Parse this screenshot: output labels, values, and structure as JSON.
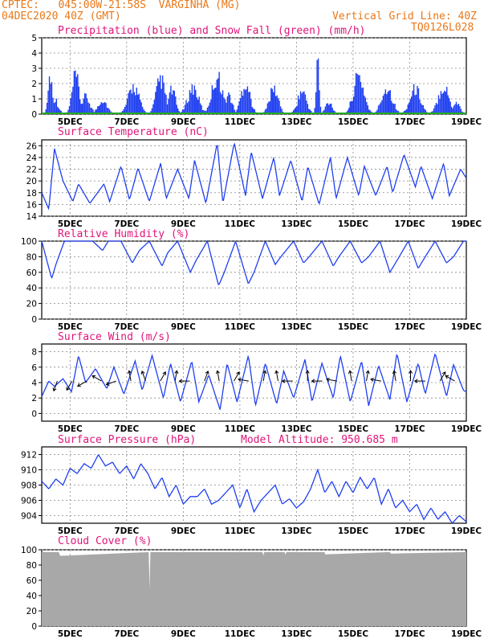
{
  "header": {
    "line1": "CPTEC:   045:00W-21:58S  VARGINHA (MG)",
    "line2": "04DEC2020 40Z (GMT)",
    "vgrid": "Vertical Grid Line: 40Z",
    "code": "TQ0126L028"
  },
  "colors": {
    "header": "#e8781a",
    "title": "#e0157a",
    "line": "#1f3ff0",
    "snow": "#22aa22",
    "cloud": "#a8a8a8"
  },
  "chart_data": [
    {
      "type": "bar",
      "title": "Precipitation (blue) and Snow Fall (green) (mm/h)",
      "ylim": [
        0,
        5
      ],
      "yticks": [
        0,
        1,
        2,
        3,
        4,
        5
      ],
      "x_ticks": [
        "5DEC",
        "7DEC",
        "9DEC",
        "11DEC",
        "13DEC",
        "15DEC",
        "17DEC",
        "19DEC"
      ],
      "series": [
        {
          "name": "Precipitation",
          "color": "#1f3ff0",
          "events": [
            {
              "t": 0.3,
              "peak": 3.2,
              "width": 0.12
            },
            {
              "t": 0.45,
              "peak": 1.3,
              "width": 0.2
            },
            {
              "t": 1.2,
              "peak": 3.1,
              "width": 0.2
            },
            {
              "t": 1.55,
              "peak": 1.4,
              "width": 0.25
            },
            {
              "t": 2.15,
              "peak": 1.2,
              "width": 0.25
            },
            {
              "t": 3.25,
              "peak": 2.3,
              "width": 0.3
            },
            {
              "t": 4.2,
              "peak": 2.9,
              "width": 0.25
            },
            {
              "t": 4.6,
              "peak": 2.0,
              "width": 0.2
            },
            {
              "t": 5.35,
              "peak": 2.2,
              "width": 0.3
            },
            {
              "t": 6.2,
              "peak": 3.1,
              "width": 0.3
            },
            {
              "t": 6.6,
              "peak": 1.6,
              "width": 0.2
            },
            {
              "t": 7.2,
              "peak": 2.6,
              "width": 0.25
            },
            {
              "t": 8.2,
              "peak": 2.1,
              "width": 0.25
            },
            {
              "t": 9.2,
              "peak": 1.9,
              "width": 0.25
            },
            {
              "t": 9.75,
              "peak": 4.7,
              "width": 0.08
            },
            {
              "t": 10.15,
              "peak": 1.0,
              "width": 0.2
            },
            {
              "t": 11.2,
              "peak": 3.1,
              "width": 0.3
            },
            {
              "t": 12.2,
              "peak": 2.2,
              "width": 0.3
            },
            {
              "t": 13.2,
              "peak": 2.1,
              "width": 0.3
            },
            {
              "t": 14.2,
              "peak": 2.3,
              "width": 0.3
            },
            {
              "t": 14.65,
              "peak": 1.0,
              "width": 0.2
            }
          ]
        },
        {
          "name": "Snow Fall",
          "color": "#22aa22",
          "values": [
            0
          ]
        }
      ]
    },
    {
      "type": "line",
      "title": "Surface Temperature (nC)",
      "ylim": [
        14,
        27
      ],
      "yticks": [
        14,
        16,
        18,
        20,
        22,
        24,
        26
      ],
      "x_ticks": [
        "5DEC",
        "7DEC",
        "9DEC",
        "11DEC",
        "13DEC",
        "15DEC",
        "17DEC",
        "19DEC"
      ],
      "t": [
        0,
        0.25,
        0.45,
        0.75,
        1.1,
        1.3,
        1.7,
        2.2,
        2.4,
        2.8,
        3.1,
        3.4,
        3.8,
        4.2,
        4.4,
        4.8,
        5.2,
        5.4,
        5.8,
        6.2,
        6.4,
        6.8,
        7.2,
        7.4,
        7.8,
        8.2,
        8.4,
        8.8,
        9.2,
        9.4,
        9.8,
        10.2,
        10.4,
        10.8,
        11.2,
        11.4,
        11.8,
        12.2,
        12.4,
        12.8,
        13.2,
        13.4,
        13.8,
        14.2,
        14.4,
        14.8,
        15.0
      ],
      "values": [
        18,
        15.2,
        25.5,
        20,
        16.5,
        19.5,
        16.2,
        19.5,
        16.5,
        22.5,
        16.8,
        22.2,
        16.5,
        23,
        17,
        22,
        17,
        23.5,
        16.2,
        26.5,
        16.2,
        26.5,
        17.5,
        25,
        17,
        24,
        17.5,
        23.5,
        16.5,
        22.5,
        16,
        24,
        17,
        24,
        17.5,
        22.5,
        17.5,
        22.5,
        18,
        24.5,
        19,
        22.5,
        17,
        23,
        17.5,
        22,
        20.5
      ]
    },
    {
      "type": "line",
      "title": "Relative Humidity (%)",
      "ylim": [
        0,
        100
      ],
      "yticks": [
        0,
        20,
        40,
        60,
        80,
        100
      ],
      "x_ticks": [
        "5DEC",
        "7DEC",
        "9DEC",
        "11DEC",
        "13DEC",
        "15DEC",
        "17DEC",
        "19DEC"
      ],
      "t": [
        0,
        0.35,
        0.5,
        0.8,
        1.0,
        1.3,
        1.8,
        2.15,
        2.35,
        2.8,
        3.2,
        3.45,
        3.8,
        4.25,
        4.45,
        4.8,
        5.25,
        5.45,
        5.85,
        6.25,
        6.45,
        6.85,
        7.3,
        7.5,
        7.9,
        8.25,
        8.45,
        8.9,
        9.25,
        9.45,
        9.9,
        10.3,
        10.5,
        10.9,
        11.3,
        11.55,
        11.95,
        12.3,
        12.55,
        12.95,
        13.3,
        13.55,
        13.9,
        14.3,
        14.55,
        14.9,
        15.0
      ],
      "values": [
        100,
        52,
        70,
        100,
        100,
        100,
        100,
        88,
        100,
        100,
        72,
        88,
        100,
        68,
        85,
        100,
        60,
        75,
        100,
        43,
        60,
        100,
        45,
        60,
        100,
        70,
        80,
        100,
        72,
        80,
        100,
        68,
        80,
        100,
        72,
        80,
        100,
        60,
        75,
        100,
        65,
        80,
        100,
        72,
        80,
        100,
        100
      ]
    },
    {
      "type": "line",
      "title": "Surface Wind (m/s)",
      "ylim": [
        -1,
        9
      ],
      "yticks": [
        0,
        2,
        4,
        6,
        8
      ],
      "x_ticks": [
        "5DEC",
        "7DEC",
        "9DEC",
        "11DEC",
        "13DEC",
        "15DEC",
        "17DEC",
        "19DEC"
      ],
      "t": [
        0,
        0.25,
        0.45,
        0.75,
        1.05,
        1.3,
        1.55,
        1.9,
        2.3,
        2.55,
        2.9,
        3.3,
        3.55,
        3.9,
        4.3,
        4.55,
        4.9,
        5.3,
        5.55,
        5.9,
        6.3,
        6.55,
        6.9,
        7.3,
        7.55,
        7.9,
        8.3,
        8.55,
        8.9,
        9.3,
        9.55,
        9.9,
        10.3,
        10.55,
        10.9,
        11.3,
        11.55,
        11.9,
        12.3,
        12.55,
        12.9,
        13.3,
        13.55,
        13.9,
        14.3,
        14.55,
        14.9,
        15.0
      ],
      "values": [
        2.2,
        4.2,
        3.5,
        4.5,
        2.8,
        7.5,
        4,
        5.8,
        3.2,
        6,
        2.5,
        6.8,
        3,
        7.5,
        2,
        6.5,
        1.5,
        6.8,
        1.5,
        5,
        0.5,
        6.5,
        1.5,
        7.5,
        1,
        6.5,
        1.2,
        5.5,
        2,
        7,
        1.5,
        6.5,
        2,
        7.5,
        1.5,
        6.8,
        1,
        6.2,
        1.8,
        7.8,
        1.5,
        6.5,
        2.5,
        7.8,
        2.2,
        6.3,
        3,
        2.8
      ]
    },
    {
      "type": "line",
      "title": "Surface Pressure (hPa)",
      "annotation": "Model Altitude: 950.685 m",
      "ylim": [
        903,
        913
      ],
      "yticks": [
        904,
        906,
        908,
        910,
        912
      ],
      "x_ticks": [
        "5DEC",
        "7DEC",
        "9DEC",
        "11DEC",
        "13DEC",
        "15DEC",
        "17DEC",
        "19DEC"
      ],
      "t": [
        0,
        0.25,
        0.5,
        0.75,
        1.0,
        1.25,
        1.5,
        1.75,
        2.0,
        2.25,
        2.5,
        2.75,
        3.0,
        3.25,
        3.5,
        3.75,
        4.0,
        4.25,
        4.5,
        4.75,
        5.0,
        5.25,
        5.5,
        5.75,
        6.0,
        6.25,
        6.5,
        6.75,
        7.0,
        7.25,
        7.5,
        7.75,
        8.0,
        8.25,
        8.5,
        8.75,
        9.0,
        9.25,
        9.5,
        9.75,
        10.0,
        10.25,
        10.5,
        10.75,
        11.0,
        11.25,
        11.5,
        11.75,
        12.0,
        12.25,
        12.5,
        12.75,
        13.0,
        13.25,
        13.5,
        13.75,
        14.0,
        14.25,
        14.5,
        14.75,
        15.0
      ],
      "values": [
        908.5,
        907.5,
        908.8,
        908,
        910.2,
        909.5,
        910.8,
        910.2,
        912,
        910.5,
        911,
        909.5,
        910.5,
        908.8,
        910.8,
        909.5,
        907.5,
        909,
        906.5,
        908,
        905.5,
        906.5,
        906.5,
        907.5,
        905.5,
        906,
        907,
        908,
        905,
        907.5,
        904.5,
        906,
        907,
        908,
        905.5,
        906.2,
        905,
        905.8,
        907.5,
        910,
        907,
        908.5,
        906.5,
        908.5,
        907,
        909,
        907.5,
        909,
        905.5,
        907.5,
        905,
        906,
        904.5,
        905.5,
        903.5,
        905,
        903.5,
        904.5,
        903,
        904,
        903.2
      ]
    },
    {
      "type": "area",
      "title": "Cloud Cover (%)",
      "ylim": [
        0,
        100
      ],
      "yticks": [
        0,
        20,
        40,
        60,
        80,
        100
      ],
      "x_ticks": [
        "5DEC",
        "7DEC",
        "9DEC",
        "11DEC",
        "13DEC",
        "15DEC",
        "17DEC",
        "19DEC"
      ],
      "t": [
        0,
        0.6,
        0.65,
        3.8,
        3.82,
        3.84,
        7.8,
        7.82,
        7.84,
        8.6,
        8.62,
        8.64,
        10.0,
        10.02,
        12.3,
        12.32,
        15.0
      ],
      "values": [
        97,
        97,
        92,
        97,
        0,
        97,
        97,
        88,
        97,
        97,
        90,
        97,
        97,
        94,
        97,
        95,
        97
      ]
    }
  ]
}
